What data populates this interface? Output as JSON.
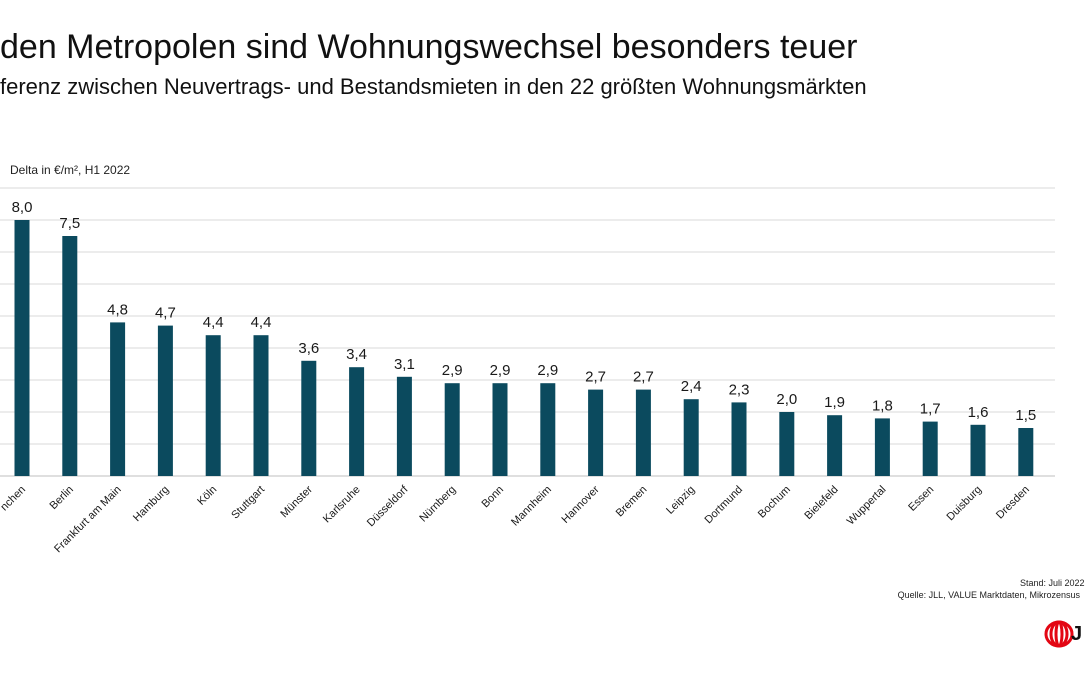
{
  "header": {
    "title": "den Metropolen sind Wohnungswechsel besonders teuer",
    "subtitle": "ferenz zwischen Neuvertrags- und Bestandsmieten in den 22 größten Wohnungsmärkten"
  },
  "chart_data": {
    "type": "bar",
    "ylabel": "Delta in €/m², H1 2022",
    "categories": [
      "nchen",
      "Berlin",
      "Frankfurt am Main",
      "Hamburg",
      "Köln",
      "Stuttgart",
      "Münster",
      "Karlsruhe",
      "Düsseldorf",
      "Nürnberg",
      "Bonn",
      "Mannheim",
      "Hannover",
      "Bremen",
      "Leipzig",
      "Dortmund",
      "Bochum",
      "Bielefeld",
      "Wuppertal",
      "Essen",
      "Duisburg",
      "Dresden"
    ],
    "values": [
      8.0,
      7.5,
      4.8,
      4.7,
      4.4,
      4.4,
      3.6,
      3.4,
      3.1,
      2.9,
      2.9,
      2.9,
      2.7,
      2.7,
      2.4,
      2.3,
      2.0,
      1.9,
      1.8,
      1.7,
      1.6,
      1.5
    ],
    "value_labels": [
      "8,0",
      "7,5",
      "4,8",
      "4,7",
      "4,4",
      "4,4",
      "3,6",
      "3,4",
      "3,1",
      "2,9",
      "2,9",
      "2,9",
      "2,7",
      "2,7",
      "2,4",
      "2,3",
      "2,0",
      "1,9",
      "1,8",
      "1,7",
      "1,6",
      "1,5"
    ],
    "ylim": [
      0,
      9
    ],
    "grid": true,
    "bar_color": "#0b4a5e"
  },
  "footer": {
    "stand": "Stand: Juli 2022",
    "quelle": "Quelle: JLL, VALUE Marktdaten, Mikrozensus"
  },
  "logo": {
    "name": "jll-logo-icon",
    "color": "#e30613",
    "letter": "J"
  }
}
